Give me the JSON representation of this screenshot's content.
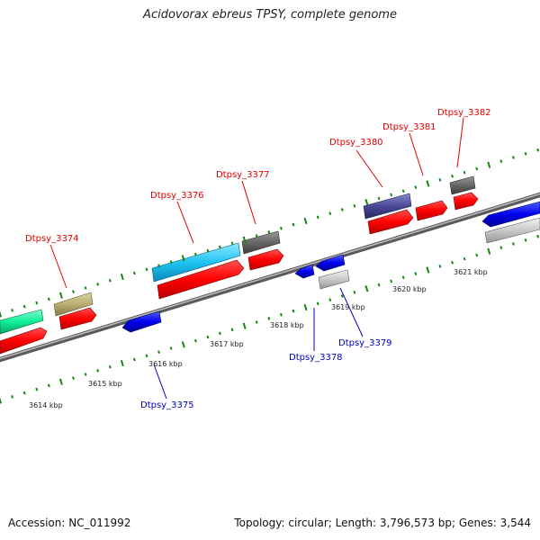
{
  "title": "Acidovorax ebreus TPSY, complete genome",
  "footer": {
    "accession": "Accession: NC_011992",
    "summary": "Topology: circular; Length: 3,796,573 bp; Genes: 3,544"
  },
  "scale_labels": [
    "3614 kbp",
    "3615 kbp",
    "3616 kbp",
    "3617 kbp",
    "3618 kbp",
    "3619 kbp",
    "3620 kbp",
    "3621 kbp"
  ],
  "colors": {
    "forward_label": "#e00000",
    "reverse_label": "#0000bb",
    "cds": "#ff0000",
    "reverse_cds": "#0000ee",
    "backbone": "#808080",
    "ticks": "#118811"
  },
  "gene_labels": [
    {
      "id": "Dtpsy_3374",
      "text": "Dtpsy_3374",
      "strand": "forward"
    },
    {
      "id": "Dtpsy_3376",
      "text": "Dtpsy_3376",
      "strand": "forward"
    },
    {
      "id": "Dtpsy_3377",
      "text": "Dtpsy_3377",
      "strand": "forward"
    },
    {
      "id": "Dtpsy_3380",
      "text": "Dtpsy_3380",
      "strand": "forward"
    },
    {
      "id": "Dtpsy_3381",
      "text": "Dtpsy_3381",
      "strand": "forward"
    },
    {
      "id": "Dtpsy_3382",
      "text": "Dtpsy_3382",
      "strand": "forward"
    },
    {
      "id": "Dtpsy_3375",
      "text": "Dtpsy_3375",
      "strand": "reverse"
    },
    {
      "id": "Dtpsy_3378",
      "text": "Dtpsy_3378",
      "strand": "reverse"
    },
    {
      "id": "Dtpsy_3379",
      "text": "Dtpsy_3379",
      "strand": "reverse"
    }
  ]
}
